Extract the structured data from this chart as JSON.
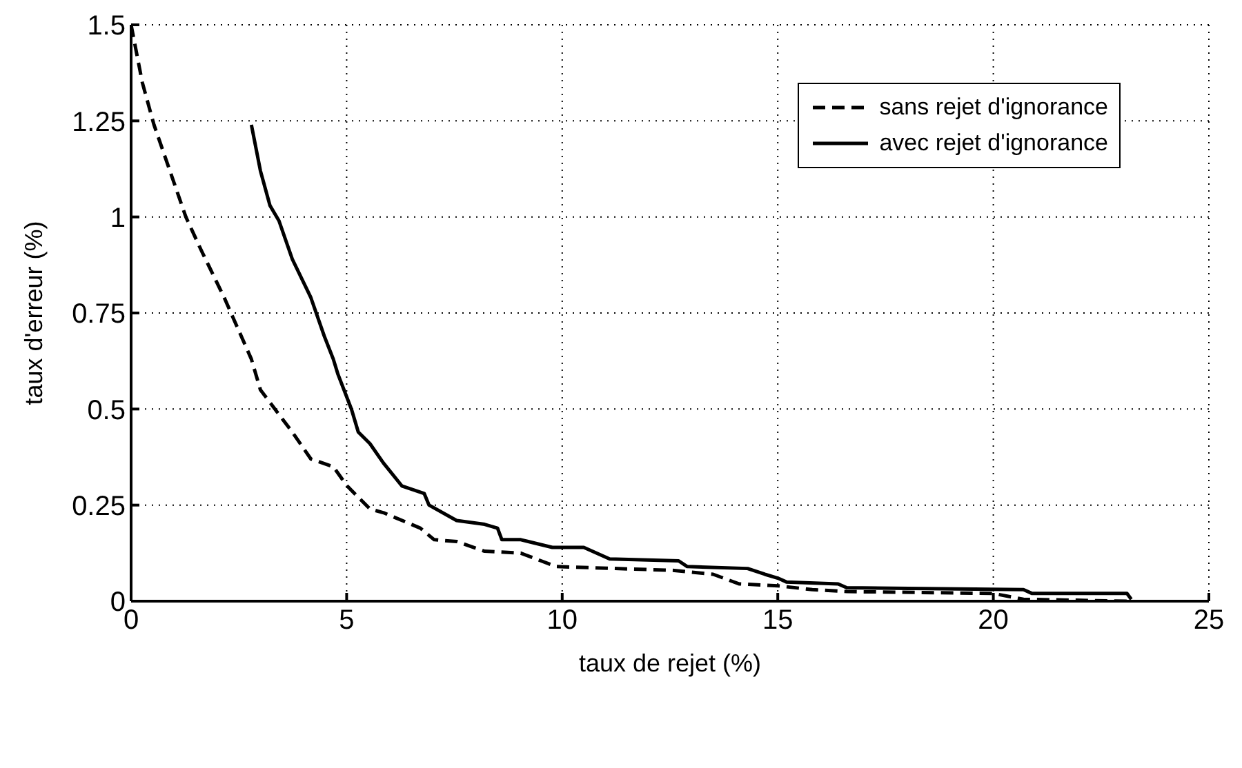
{
  "chart_data": {
    "type": "line",
    "xlabel": "taux de rejet (%)",
    "ylabel": "taux d'erreur (%)",
    "xlim": [
      0,
      25
    ],
    "xticks": [
      0,
      5,
      10,
      15,
      20,
      25
    ],
    "ylim": [
      0,
      1.5
    ],
    "yticks": [
      0,
      0.25,
      0.5,
      0.75,
      1,
      1.25,
      1.5
    ],
    "grid": true,
    "legend": "top right",
    "marker": "none",
    "series": [
      {
        "name": "sans rejet d'ignorance",
        "color": "#000000",
        "line_style": "dashed",
        "x": [
          0,
          0.26,
          0.53,
          0.9,
          1.27,
          1.64,
          2.16,
          2.79,
          3.0,
          3.74,
          4.17,
          4.69,
          5.01,
          5.54,
          5.86,
          6.71,
          7.03,
          7.56,
          8.2,
          9.04,
          9.86,
          12.6,
          13.5,
          14.1,
          15.0,
          15.8,
          16.6,
          20.0,
          20.7,
          23.1
        ],
        "values": [
          1.5,
          1.35,
          1.24,
          1.12,
          1.0,
          0.91,
          0.79,
          0.63,
          0.55,
          0.44,
          0.37,
          0.35,
          0.3,
          0.24,
          0.23,
          0.19,
          0.16,
          0.155,
          0.13,
          0.125,
          0.09,
          0.08,
          0.07,
          0.045,
          0.04,
          0.03,
          0.025,
          0.02,
          0.005,
          0
        ]
      },
      {
        "name": "avec rejet d'ignorance",
        "color": "#000000",
        "line_style": "solid",
        "x": [
          2.79,
          3.0,
          3.22,
          3.43,
          3.74,
          4.17,
          4.48,
          4.69,
          4.8,
          5.11,
          5.27,
          5.54,
          5.85,
          6.28,
          6.8,
          6.91,
          7.55,
          8.2,
          8.5,
          8.6,
          9.04,
          9.77,
          10.5,
          11.1,
          12.7,
          12.9,
          14.3,
          14.7,
          15.0,
          15.2,
          16.4,
          16.6,
          20.7,
          20.9,
          23.1,
          23.2
        ],
        "values": [
          1.24,
          1.12,
          1.03,
          0.99,
          0.89,
          0.79,
          0.69,
          0.63,
          0.59,
          0.5,
          0.44,
          0.41,
          0.36,
          0.3,
          0.28,
          0.25,
          0.21,
          0.2,
          0.19,
          0.16,
          0.16,
          0.14,
          0.14,
          0.11,
          0.105,
          0.09,
          0.085,
          0.07,
          0.06,
          0.05,
          0.045,
          0.035,
          0.03,
          0.02,
          0.02,
          0.005
        ]
      }
    ]
  }
}
